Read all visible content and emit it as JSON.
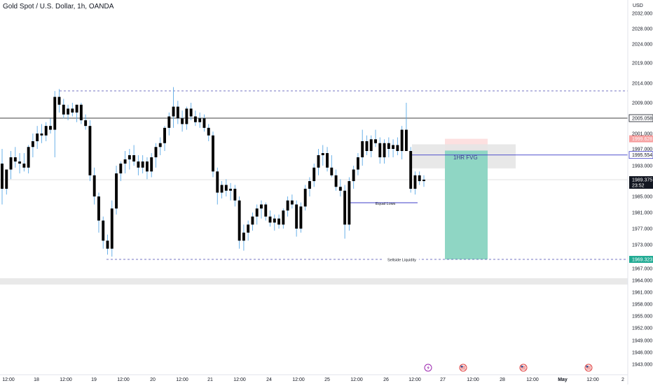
{
  "header": {
    "title": "Gold Spot / U.S. Dollar, 1h, OANDA"
  },
  "chart_data": {
    "type": "candlestick",
    "currency_label": "USD",
    "y_ticks": [
      "2032.000",
      "2028.000",
      "2024.000",
      "2019.000",
      "2014.000",
      "2009.000",
      "2001.000",
      "1997.000",
      "1993.000",
      "1985.000",
      "1981.000",
      "1977.000",
      "1973.000",
      "1967.000",
      "1964.000",
      "1961.000",
      "1958.000",
      "1955.000",
      "1952.000",
      "1949.000",
      "1946.000",
      "1943.000"
    ],
    "x_ticks": [
      "12:00",
      "18",
      "12:00",
      "19",
      "12:00",
      "20",
      "12:00",
      "21",
      "12:00",
      "24",
      "12:00",
      "25",
      "12:00",
      "26",
      "12:00",
      "27",
      "12:00",
      "28",
      "12:00",
      "May",
      "12:00",
      "2"
    ],
    "price_labels": {
      "resistance": "2005.058",
      "target_top": "1999.628",
      "fvg_line": "1995.554",
      "current": "1989.375",
      "countdown": "23:52",
      "stop_target": "1969.323"
    },
    "annotations": {
      "fvg": "1HR FVG",
      "equal_lows": "Equal Lows",
      "sellside": "Sellside Liquidity"
    },
    "colors": {
      "candle": "#000000",
      "wick": "#5aa9e6",
      "resistance_line": "#000000",
      "fvg_line": "#3c3cc8",
      "dashed": "#4a4ab0",
      "target_zone": "#8fd6c4",
      "stop_zone": "#fde0e0",
      "fvg_zone": "#e6e6e6"
    },
    "candles": [
      {
        "o": 1993.5,
        "h": 1997.0,
        "l": 1983.0,
        "c": 1987.0
      },
      {
        "o": 1987.0,
        "h": 1992.0,
        "l": 1985.5,
        "c": 1992.0
      },
      {
        "o": 1992.0,
        "h": 1996.5,
        "l": 1989.5,
        "c": 1995.0
      },
      {
        "o": 1995.0,
        "h": 1997.5,
        "l": 1992.5,
        "c": 1994.0
      },
      {
        "o": 1994.0,
        "h": 1996.0,
        "l": 1991.0,
        "c": 1993.5
      },
      {
        "o": 1993.5,
        "h": 1996.0,
        "l": 1991.5,
        "c": 1992.5
      },
      {
        "o": 1992.5,
        "h": 1998.0,
        "l": 1991.0,
        "c": 1997.5
      },
      {
        "o": 1997.5,
        "h": 2001.0,
        "l": 1995.0,
        "c": 1999.0
      },
      {
        "o": 1999.0,
        "h": 2003.0,
        "l": 1997.0,
        "c": 2001.0
      },
      {
        "o": 2001.0,
        "h": 2003.5,
        "l": 1998.5,
        "c": 2000.5
      },
      {
        "o": 2000.5,
        "h": 2004.0,
        "l": 1999.0,
        "c": 2003.0
      },
      {
        "o": 2003.0,
        "h": 2005.0,
        "l": 2001.0,
        "c": 2002.0
      },
      {
        "o": 2002.0,
        "h": 2012.0,
        "l": 1995.0,
        "c": 2010.5
      },
      {
        "o": 2010.5,
        "h": 2012.5,
        "l": 2006.5,
        "c": 2008.5
      },
      {
        "o": 2008.5,
        "h": 2010.0,
        "l": 2005.0,
        "c": 2006.0
      },
      {
        "o": 2006.0,
        "h": 2008.5,
        "l": 2004.5,
        "c": 2007.5
      },
      {
        "o": 2007.5,
        "h": 2009.0,
        "l": 2005.5,
        "c": 2006.5
      },
      {
        "o": 2006.5,
        "h": 2008.5,
        "l": 2004.0,
        "c": 2008.5
      },
      {
        "o": 2008.5,
        "h": 2009.0,
        "l": 2003.5,
        "c": 2004.5
      },
      {
        "o": 2004.5,
        "h": 2006.0,
        "l": 2002.0,
        "c": 2003.0
      },
      {
        "o": 2003.0,
        "h": 2004.5,
        "l": 1989.0,
        "c": 1990.5
      },
      {
        "o": 1990.5,
        "h": 1992.5,
        "l": 1983.0,
        "c": 1985.0
      },
      {
        "o": 1985.0,
        "h": 1986.0,
        "l": 1976.0,
        "c": 1979.0
      },
      {
        "o": 1979.0,
        "h": 1980.0,
        "l": 1972.0,
        "c": 1974.0
      },
      {
        "o": 1974.0,
        "h": 1975.5,
        "l": 1970.5,
        "c": 1972.0
      },
      {
        "o": 1972.0,
        "h": 1984.0,
        "l": 1970.0,
        "c": 1982.0
      },
      {
        "o": 1982.0,
        "h": 1993.0,
        "l": 1980.5,
        "c": 1991.0
      },
      {
        "o": 1991.0,
        "h": 1994.0,
        "l": 1989.0,
        "c": 1993.5
      },
      {
        "o": 1993.5,
        "h": 1996.5,
        "l": 1991.0,
        "c": 1994.5
      },
      {
        "o": 1994.5,
        "h": 1997.0,
        "l": 1992.0,
        "c": 1995.5
      },
      {
        "o": 1995.5,
        "h": 1998.0,
        "l": 1993.0,
        "c": 1994.0
      },
      {
        "o": 1994.0,
        "h": 1995.5,
        "l": 1990.5,
        "c": 1992.5
      },
      {
        "o": 1992.5,
        "h": 1995.5,
        "l": 1991.0,
        "c": 1994.0
      },
      {
        "o": 1994.0,
        "h": 1995.0,
        "l": 1989.5,
        "c": 1991.5
      },
      {
        "o": 1991.5,
        "h": 1996.0,
        "l": 1990.0,
        "c": 1995.0
      },
      {
        "o": 1995.0,
        "h": 1998.5,
        "l": 1992.5,
        "c": 1997.5
      },
      {
        "o": 1997.5,
        "h": 2000.0,
        "l": 1995.5,
        "c": 1998.5
      },
      {
        "o": 1998.5,
        "h": 2003.0,
        "l": 1996.5,
        "c": 2002.5
      },
      {
        "o": 2002.5,
        "h": 2006.5,
        "l": 2000.5,
        "c": 2005.5
      },
      {
        "o": 2005.5,
        "h": 2013.0,
        "l": 2002.5,
        "c": 2008.0
      },
      {
        "o": 2008.0,
        "h": 2009.5,
        "l": 2003.5,
        "c": 2005.0
      },
      {
        "o": 2005.0,
        "h": 2007.0,
        "l": 2001.5,
        "c": 2003.5
      },
      {
        "o": 2003.5,
        "h": 2008.0,
        "l": 2002.0,
        "c": 2007.5
      },
      {
        "o": 2007.5,
        "h": 2009.0,
        "l": 2004.5,
        "c": 2005.5
      },
      {
        "o": 2005.5,
        "h": 2007.0,
        "l": 2003.0,
        "c": 2004.0
      },
      {
        "o": 2004.0,
        "h": 2006.5,
        "l": 2002.5,
        "c": 2005.0
      },
      {
        "o": 2005.0,
        "h": 2006.0,
        "l": 2001.5,
        "c": 2002.5
      },
      {
        "o": 2002.5,
        "h": 2003.5,
        "l": 1999.0,
        "c": 2000.5
      },
      {
        "o": 2000.5,
        "h": 2001.5,
        "l": 1990.0,
        "c": 1991.5
      },
      {
        "o": 1991.5,
        "h": 1992.5,
        "l": 1983.0,
        "c": 1986.0
      },
      {
        "o": 1986.0,
        "h": 1989.0,
        "l": 1984.5,
        "c": 1988.0
      },
      {
        "o": 1988.0,
        "h": 1989.5,
        "l": 1985.0,
        "c": 1986.5
      },
      {
        "o": 1986.5,
        "h": 1988.5,
        "l": 1984.0,
        "c": 1987.0
      },
      {
        "o": 1987.0,
        "h": 1988.0,
        "l": 1982.5,
        "c": 1984.0
      },
      {
        "o": 1984.0,
        "h": 1985.0,
        "l": 1972.0,
        "c": 1974.0
      },
      {
        "o": 1974.0,
        "h": 1978.0,
        "l": 1971.5,
        "c": 1976.0
      },
      {
        "o": 1976.0,
        "h": 1979.0,
        "l": 1974.0,
        "c": 1978.0
      },
      {
        "o": 1978.0,
        "h": 1981.0,
        "l": 1976.5,
        "c": 1980.0
      },
      {
        "o": 1980.0,
        "h": 1983.0,
        "l": 1978.0,
        "c": 1982.0
      },
      {
        "o": 1982.0,
        "h": 1984.0,
        "l": 1979.5,
        "c": 1983.0
      },
      {
        "o": 1983.0,
        "h": 1983.5,
        "l": 1979.0,
        "c": 1980.0
      },
      {
        "o": 1980.0,
        "h": 1981.5,
        "l": 1977.5,
        "c": 1978.5
      },
      {
        "o": 1978.5,
        "h": 1980.5,
        "l": 1976.5,
        "c": 1979.5
      },
      {
        "o": 1979.5,
        "h": 1980.5,
        "l": 1977.0,
        "c": 1978.0
      },
      {
        "o": 1978.0,
        "h": 1982.0,
        "l": 1977.0,
        "c": 1981.5
      },
      {
        "o": 1981.5,
        "h": 1985.0,
        "l": 1980.0,
        "c": 1984.0
      },
      {
        "o": 1984.0,
        "h": 1985.5,
        "l": 1982.0,
        "c": 1983.0
      },
      {
        "o": 1983.0,
        "h": 1984.0,
        "l": 1975.0,
        "c": 1977.0
      },
      {
        "o": 1977.0,
        "h": 1983.5,
        "l": 1976.0,
        "c": 1982.5
      },
      {
        "o": 1982.5,
        "h": 1988.0,
        "l": 1981.5,
        "c": 1987.0
      },
      {
        "o": 1987.0,
        "h": 1990.0,
        "l": 1985.0,
        "c": 1989.0
      },
      {
        "o": 1989.0,
        "h": 1993.5,
        "l": 1987.5,
        "c": 1992.5
      },
      {
        "o": 1992.5,
        "h": 1997.0,
        "l": 1990.5,
        "c": 1995.5
      },
      {
        "o": 1995.5,
        "h": 1998.0,
        "l": 1993.0,
        "c": 1996.0
      },
      {
        "o": 1996.0,
        "h": 1997.5,
        "l": 1991.5,
        "c": 1992.5
      },
      {
        "o": 1992.5,
        "h": 1995.5,
        "l": 1990.0,
        "c": 1990.5
      },
      {
        "o": 1990.5,
        "h": 1992.0,
        "l": 1986.5,
        "c": 1987.5
      },
      {
        "o": 1987.5,
        "h": 1989.5,
        "l": 1985.0,
        "c": 1986.5
      },
      {
        "o": 1986.5,
        "h": 1988.0,
        "l": 1974.5,
        "c": 1978.0
      },
      {
        "o": 1978.0,
        "h": 1990.0,
        "l": 1976.5,
        "c": 1989.0
      },
      {
        "o": 1989.0,
        "h": 1993.0,
        "l": 1987.0,
        "c": 1992.0
      },
      {
        "o": 1992.0,
        "h": 1996.0,
        "l": 1990.5,
        "c": 1995.0
      },
      {
        "o": 1995.0,
        "h": 2002.0,
        "l": 1993.0,
        "c": 1999.0
      },
      {
        "o": 1999.0,
        "h": 2000.5,
        "l": 1995.5,
        "c": 1996.5
      },
      {
        "o": 1996.5,
        "h": 2000.5,
        "l": 1995.0,
        "c": 1999.5
      },
      {
        "o": 1999.5,
        "h": 2002.0,
        "l": 1997.5,
        "c": 1998.5
      },
      {
        "o": 1998.5,
        "h": 2000.0,
        "l": 1993.5,
        "c": 1995.0
      },
      {
        "o": 1995.0,
        "h": 1999.5,
        "l": 1993.5,
        "c": 1998.5
      },
      {
        "o": 1998.5,
        "h": 2000.0,
        "l": 1995.0,
        "c": 1997.0
      },
      {
        "o": 1997.0,
        "h": 1999.5,
        "l": 1995.0,
        "c": 1998.0
      },
      {
        "o": 1998.0,
        "h": 2000.0,
        "l": 1995.5,
        "c": 1996.5
      },
      {
        "o": 1996.5,
        "h": 2003.0,
        "l": 1994.5,
        "c": 2002.0
      },
      {
        "o": 2002.0,
        "h": 2009.0,
        "l": 1996.5,
        "c": 1996.5
      },
      {
        "o": 1996.5,
        "h": 1997.5,
        "l": 1986.0,
        "c": 1987.0
      },
      {
        "o": 1987.0,
        "h": 1991.5,
        "l": 1985.5,
        "c": 1990.5
      },
      {
        "o": 1990.5,
        "h": 1991.5,
        "l": 1988.0,
        "c": 1989.0
      },
      {
        "o": 1989.0,
        "h": 1990.5,
        "l": 1987.5,
        "c": 1989.375
      }
    ]
  }
}
